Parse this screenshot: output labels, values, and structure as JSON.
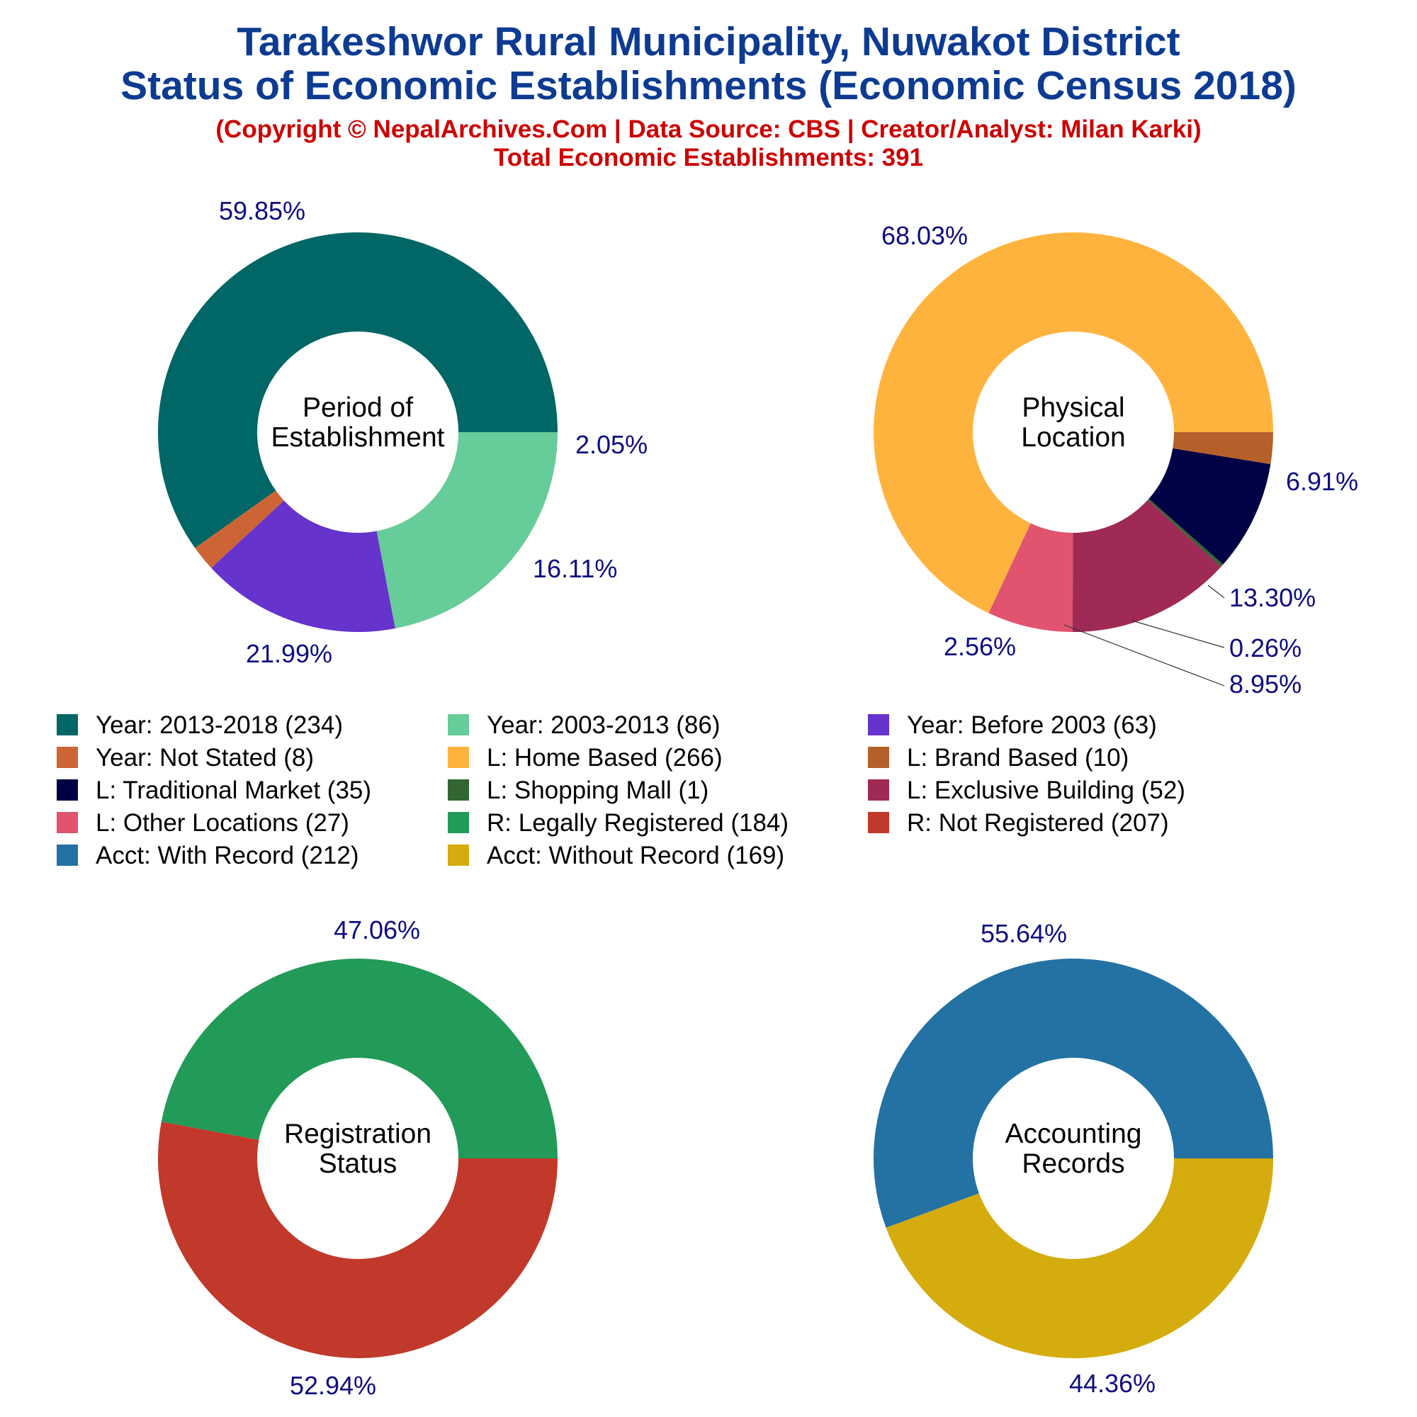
{
  "header": {
    "title_line1": "Tarakeshwor Rural Municipality, Nuwakot District",
    "title_line2": "Status of Economic Establishments (Economic Census 2018)",
    "copyright": "(Copyright © NepalArchives.Com | Data Source: CBS | Creator/Analyst: Milan Karki)",
    "total": "Total Economic Establishments: 391"
  },
  "chart_data": [
    {
      "type": "pie",
      "donut": true,
      "center_label": [
        "Period of",
        "Establishment"
      ],
      "slices": [
        {
          "label": "Year: 2013-2018",
          "value": 234,
          "percent_label": "59.85%",
          "color": "#006666"
        },
        {
          "label": "Year: Not Stated",
          "value": 8,
          "percent_label": "2.05%",
          "color": "#cd6435"
        },
        {
          "label": "Year: Before 2003",
          "value": 63,
          "percent_label": "16.11%",
          "color": "#6633cc"
        },
        {
          "label": "Year: 2003-2013",
          "value": 86,
          "percent_label": "21.99%",
          "color": "#66cc99"
        }
      ]
    },
    {
      "type": "pie",
      "donut": true,
      "center_label": [
        "Physical",
        "Location"
      ],
      "slices": [
        {
          "label": "L: Home Based",
          "value": 266,
          "percent_label": "68.03%",
          "color": "#ffb33f"
        },
        {
          "label": "L: Other Locations",
          "value": 27,
          "percent_label": "6.91%",
          "color": "#e05470"
        },
        {
          "label": "L: Exclusive Building",
          "value": 52,
          "percent_label": "13.30%",
          "color": "#9e2a55"
        },
        {
          "label": "L: Shopping Mall",
          "value": 1,
          "percent_label": "0.26%",
          "color": "#336633"
        },
        {
          "label": "L: Traditional Market",
          "value": 35,
          "percent_label": "8.95%",
          "color": "#000044"
        },
        {
          "label": "L: Brand Based",
          "value": 10,
          "percent_label": "2.56%",
          "color": "#b5602b"
        }
      ]
    },
    {
      "type": "pie",
      "donut": true,
      "center_label": [
        "Registration",
        "Status"
      ],
      "slices": [
        {
          "label": "R: Legally Registered",
          "value": 184,
          "percent_label": "47.06%",
          "color": "#229a58"
        },
        {
          "label": "R: Not Registered",
          "value": 207,
          "percent_label": "52.94%",
          "color": "#c0392b"
        }
      ]
    },
    {
      "type": "pie",
      "donut": true,
      "center_label": [
        "Accounting",
        "Records"
      ],
      "slices": [
        {
          "label": "Acct: With Record",
          "value": 212,
          "percent_label": "55.64%",
          "color": "#2471a3"
        },
        {
          "label": "Acct: Without Record",
          "value": 169,
          "percent_label": "44.36%",
          "color": "#d4ac0d"
        }
      ]
    }
  ],
  "legend": [
    {
      "text": "Year: 2013-2018 (234)",
      "color": "#006666"
    },
    {
      "text": "Year: 2003-2013 (86)",
      "color": "#66cc99"
    },
    {
      "text": "Year: Before 2003 (63)",
      "color": "#6633cc"
    },
    {
      "text": "Year: Not Stated (8)",
      "color": "#cd6435"
    },
    {
      "text": "L: Home Based (266)",
      "color": "#ffb33f"
    },
    {
      "text": "L: Brand Based (10)",
      "color": "#b5602b"
    },
    {
      "text": "L: Traditional Market (35)",
      "color": "#000044"
    },
    {
      "text": "L: Shopping Mall (1)",
      "color": "#336633"
    },
    {
      "text": "L: Exclusive Building (52)",
      "color": "#9e2a55"
    },
    {
      "text": "L: Other Locations (27)",
      "color": "#e05470"
    },
    {
      "text": "R: Legally Registered (184)",
      "color": "#229a58"
    },
    {
      "text": "R: Not Registered (207)",
      "color": "#c0392b"
    },
    {
      "text": "Acct: With Record (212)",
      "color": "#2471a3"
    },
    {
      "text": "Acct: Without Record (169)",
      "color": "#d4ac0d"
    }
  ]
}
